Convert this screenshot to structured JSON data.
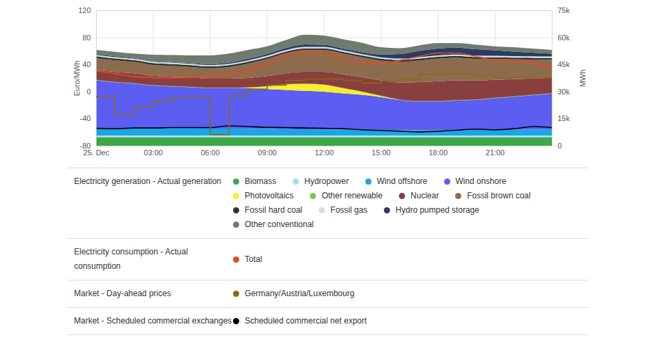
{
  "chart_data": {
    "type": "stacked_area",
    "x": [
      0,
      1,
      2,
      3,
      4,
      5,
      6,
      7,
      8,
      9,
      10,
      11,
      12,
      13,
      14,
      15,
      16,
      17,
      18,
      19,
      20,
      21,
      22,
      23,
      24
    ],
    "xlim": [
      0,
      24
    ],
    "xticks": [
      {
        "value": 0,
        "label": "25. Dec"
      },
      {
        "value": 3,
        "label": "03:00"
      },
      {
        "value": 6,
        "label": "06:00"
      },
      {
        "value": 9,
        "label": "09:00"
      },
      {
        "value": 12,
        "label": "12:00"
      },
      {
        "value": 15,
        "label": "15:00"
      },
      {
        "value": 18,
        "label": "18:00"
      },
      {
        "value": 21,
        "label": "21:00"
      }
    ],
    "ylabel": "Euro/MWh",
    "ylim": [
      -80,
      120
    ],
    "yticks": [
      -80,
      -40,
      0,
      40,
      80,
      120
    ],
    "y2label": "MWh",
    "y2lim": [
      0,
      75000
    ],
    "y2ticks": [
      0,
      {
        "value": 15000,
        "label": "15k"
      },
      {
        "value": 30000,
        "label": "30k"
      },
      {
        "value": 45000,
        "label": "45k"
      },
      {
        "value": 60000,
        "label": "60k"
      },
      {
        "value": 75000,
        "label": "75k"
      }
    ],
    "grid": true,
    "stacked": true,
    "legend_groups": [
      {
        "title": "Electricity generation - Actual generation",
        "series": [
          "Biomass",
          "Hydropower",
          "Wind offshore",
          "Wind onshore",
          "Photovoltaics",
          "Other renewable",
          "Nuclear",
          "Fossil brown coal",
          "Fossil hard coal",
          "Fossil gas",
          "Hydro pumped storage",
          "Other conventional"
        ]
      },
      {
        "title": "Electricity consumption - Actual consumption",
        "series": [
          "Total"
        ]
      },
      {
        "title": "Market - Day-ahead prices",
        "series": [
          "Germany/Austria/Luxembourg"
        ]
      },
      {
        "title": "Market - Scheduled commercial exchanges",
        "series": [
          "Scheduled commercial net export"
        ]
      }
    ],
    "series": [
      {
        "name": "Biomass",
        "type": "area",
        "axis": "y2",
        "color": "#3ca846",
        "values": [
          4500,
          4500,
          4500,
          4500,
          4500,
          4500,
          4500,
          4500,
          4500,
          4500,
          4500,
          4500,
          4500,
          4500,
          4500,
          4500,
          4500,
          4500,
          4500,
          4500,
          4500,
          4500,
          4500,
          4500,
          4500
        ]
      },
      {
        "name": "Hydropower",
        "type": "area",
        "axis": "y2",
        "color": "#a6dcef",
        "values": [
          1200,
          1200,
          1200,
          1200,
          1200,
          1200,
          1200,
          1200,
          1200,
          1200,
          1200,
          1200,
          1200,
          1200,
          1200,
          1200,
          1200,
          1200,
          1200,
          1200,
          1200,
          1200,
          1200,
          1200,
          1200
        ]
      },
      {
        "name": "Wind offshore",
        "type": "area",
        "axis": "y2",
        "color": "#19a6e3",
        "values": [
          4000,
          4000,
          4000,
          4000,
          3900,
          3900,
          3800,
          3800,
          3700,
          3600,
          3500,
          3400,
          3300,
          3200,
          3100,
          3000,
          2900,
          2800,
          2800,
          2900,
          3000,
          3100,
          3200,
          3300,
          3400
        ]
      },
      {
        "name": "Wind onshore",
        "type": "area",
        "axis": "y2",
        "color": "#5b5ef0",
        "values": [
          26600,
          25400,
          24700,
          23600,
          23200,
          22800,
          22400,
          22400,
          22400,
          22000,
          21700,
          21300,
          20900,
          20100,
          19400,
          18200,
          16700,
          16000,
          16000,
          16400,
          16700,
          17500,
          18200,
          19000,
          19800
        ]
      },
      {
        "name": "Photovoltaics",
        "type": "area",
        "axis": "y2",
        "color": "#f7ef2c",
        "values": [
          0,
          0,
          0,
          0,
          0,
          0,
          0,
          0,
          300,
          1500,
          3000,
          3800,
          3800,
          2800,
          1600,
          600,
          0,
          0,
          0,
          0,
          0,
          0,
          0,
          0,
          0
        ]
      },
      {
        "name": "Other renewable",
        "type": "area",
        "axis": "y2",
        "color": "#7cc84a",
        "values": [
          200,
          200,
          200,
          200,
          200,
          200,
          200,
          200,
          200,
          200,
          200,
          200,
          200,
          200,
          200,
          200,
          200,
          200,
          200,
          200,
          200,
          200,
          200,
          200,
          200
        ]
      },
      {
        "name": "Nuclear",
        "type": "area",
        "axis": "y2",
        "color": "#8a3f3f",
        "values": [
          5500,
          5500,
          5500,
          5200,
          5200,
          5200,
          5000,
          5000,
          5200,
          5500,
          6000,
          6500,
          7000,
          7500,
          8000,
          8500,
          9500,
          10500,
          11000,
          11000,
          10500,
          10000,
          9500,
          9000,
          8500
        ]
      },
      {
        "name": "Fossil brown coal",
        "type": "area",
        "axis": "y2",
        "color": "#8d6c4d",
        "values": [
          6500,
          6500,
          6300,
          6000,
          6000,
          5800,
          5800,
          6500,
          8000,
          9500,
          11000,
          12000,
          12000,
          11500,
          11000,
          11000,
          11500,
          12000,
          12500,
          12500,
          12000,
          11500,
          11000,
          10500,
          10000
        ]
      },
      {
        "name": "Fossil hard coal",
        "type": "area",
        "axis": "y2",
        "color": "#333333",
        "values": [
          1000,
          1000,
          1000,
          1000,
          1000,
          1000,
          1000,
          1000,
          1000,
          1000,
          1000,
          1000,
          1000,
          1000,
          1000,
          1000,
          1000,
          1000,
          1000,
          1000,
          1000,
          1000,
          1000,
          1000,
          1000
        ]
      },
      {
        "name": "Fossil gas",
        "type": "area",
        "axis": "y2",
        "color": "#cfe1dd",
        "values": [
          800,
          800,
          800,
          800,
          800,
          800,
          800,
          800,
          800,
          800,
          800,
          800,
          800,
          800,
          800,
          800,
          800,
          800,
          800,
          800,
          800,
          800,
          800,
          800,
          800
        ]
      },
      {
        "name": "Hydro pumped storage",
        "type": "area",
        "axis": "y2",
        "color": "#2b3a66",
        "values": [
          500,
          400,
          400,
          300,
          300,
          300,
          400,
          600,
          800,
          1000,
          1200,
          1400,
          1200,
          1000,
          1000,
          1500,
          2500,
          3500,
          3800,
          3800,
          3500,
          3000,
          2500,
          2000,
          1500
        ]
      },
      {
        "name": "Other conventional",
        "type": "area",
        "axis": "y2",
        "color": "#6e7b6e",
        "values": [
          2200,
          2500,
          2400,
          3600,
          3900,
          4300,
          4900,
          5000,
          4900,
          4200,
          4400,
          5400,
          5100,
          5200,
          5200,
          4000,
          3200,
          3000,
          3000,
          2500,
          2600,
          2200,
          2400,
          2300,
          2100
        ]
      },
      {
        "name": "Total",
        "type": "line",
        "axis": "y2",
        "color": "#f0461e",
        "values": [
          41700,
          40000,
          38500,
          37900,
          37800,
          38000,
          38300,
          39500,
          41300,
          45500,
          50400,
          52300,
          51200,
          48100,
          46500,
          45800,
          47500,
          49600,
          51500,
          51500,
          49600,
          47700,
          47300,
          45800,
          43600
        ]
      },
      {
        "name": "Germany/Austria/Luxembourg",
        "type": "line",
        "line_style": "step",
        "color": "#8b6a14",
        "values": [
          -7,
          -35,
          -23,
          -14,
          -7,
          -7,
          -63,
          -6,
          4,
          10,
          17,
          19,
          19,
          17,
          13,
          16,
          18,
          26,
          26,
          26,
          24,
          21,
          21,
          21,
          21
        ]
      },
      {
        "name": "Scheduled commercial net export",
        "type": "line",
        "axis": "y2",
        "color": "#000000",
        "values": [
          9800,
          9600,
          10000,
          10000,
          10200,
          10200,
          10200,
          11200,
          10800,
          10400,
          10200,
          10000,
          9800,
          9600,
          9000,
          8600,
          8200,
          7800,
          8200,
          8800,
          9400,
          9000,
          9600,
          10800,
          10200
        ]
      }
    ]
  }
}
